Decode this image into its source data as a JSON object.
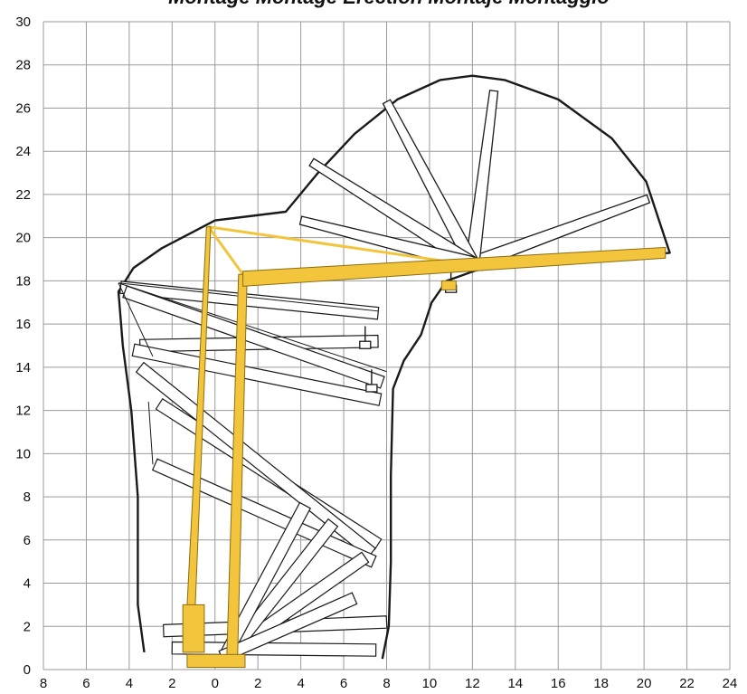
{
  "title": "Montage  Montage  Erection  Montaje  Montaggio",
  "colors": {
    "grid": "#9a9a9a",
    "outline": "#1a1a1a",
    "crane": "#f2c53d",
    "crane_stroke": "#8a6d12"
  },
  "x_axis": {
    "labels": [
      "8",
      "6",
      "4",
      "2",
      "0",
      "2",
      "4",
      "6",
      "8",
      "10",
      "12",
      "14",
      "16",
      "18",
      "20",
      "22",
      "24"
    ],
    "min": -8,
    "max": 24,
    "step": 2
  },
  "y_axis": {
    "labels": [
      "0",
      "2",
      "4",
      "6",
      "8",
      "10",
      "12",
      "14",
      "16",
      "18",
      "20",
      "22",
      "24",
      "26",
      "28",
      "30"
    ],
    "min": 0,
    "max": 30,
    "step": 2
  },
  "diagram": {
    "crane_mast": {
      "base_x": 0.8,
      "top_x": 1.3,
      "top_y": 18.3
    },
    "a_frame": {
      "foot_x": -1.2,
      "apex_x": -0.3,
      "apex_y": 20.5
    },
    "jib": {
      "from": [
        1.3,
        18.1
      ],
      "to": [
        21.0,
        19.3
      ]
    },
    "counterweight": {
      "x": [
        -1.5,
        -0.5
      ],
      "y": [
        0.8,
        3.0
      ]
    }
  }
}
